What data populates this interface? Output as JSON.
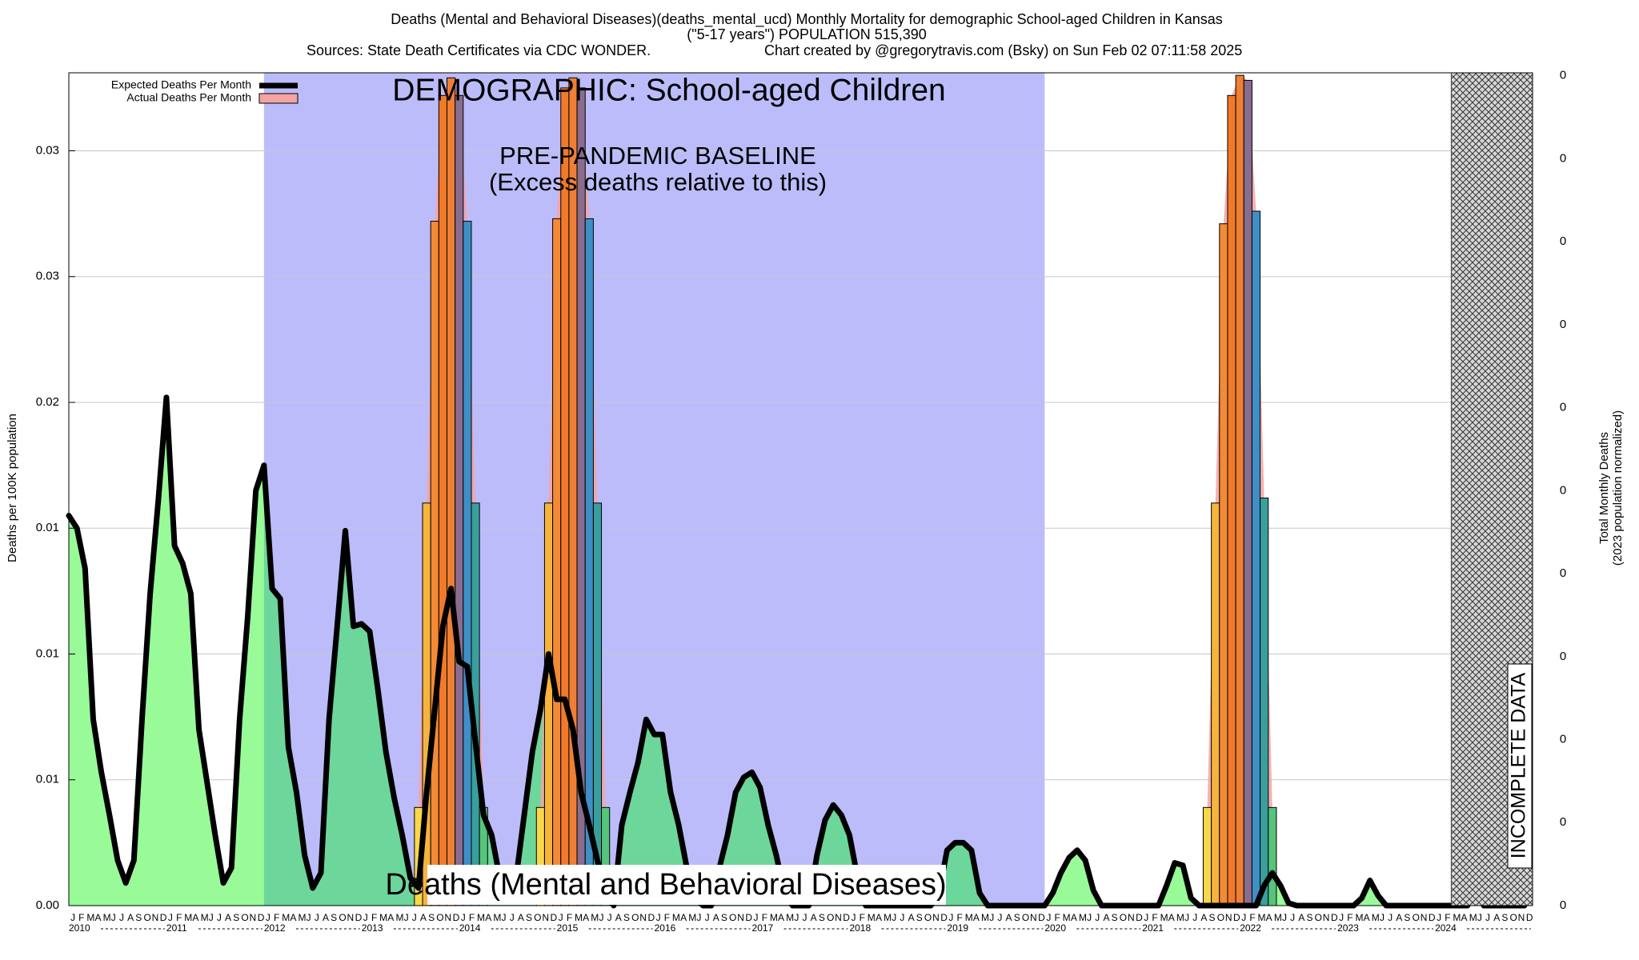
{
  "chart_data": {
    "type": "area-line",
    "title": "Deaths (Mental and Behavioral Diseases)(deaths_mental_ucd) Monthly Mortality for demographic School-aged Children in Kansas",
    "subtitle": "(\"5-17 years\") POPULATION 515,390",
    "source": "Sources: State Death Certificates via CDC WONDER.",
    "credit": "Chart created by @gregorytravis.com (Bsky) on Sun Feb 02 07:11:58 2025",
    "ylabel": "Deaths per 100K population",
    "y2label": [
      "Total Monthly Deaths",
      "(2023 population normalized)"
    ],
    "annotations": {
      "demographic": "DEMOGRAPHIC: School-aged Children",
      "baseline": "PRE-PANDEMIC BASELINE",
      "baseline_note": "(Excess deaths relative to this)",
      "cause": "Deaths (Mental and Behavioral Diseases)",
      "incomplete": "INCOMPLETE DATA"
    },
    "categories": [
      "J",
      "F",
      "M",
      "A",
      "M",
      "J",
      "J",
      "A",
      "S",
      "O",
      "N",
      "D",
      "J",
      "F",
      "M",
      "A",
      "M",
      "J",
      "J",
      "A",
      "S",
      "O",
      "N",
      "D",
      "J",
      "F",
      "M",
      "A",
      "M",
      "J",
      "J",
      "A",
      "S",
      "O",
      "N",
      "D",
      "J",
      "F",
      "M",
      "A",
      "M",
      "J",
      "J",
      "A",
      "S",
      "O",
      "N",
      "D",
      "J",
      "F",
      "M",
      "A",
      "M",
      "J",
      "J",
      "A",
      "S",
      "O",
      "N",
      "D",
      "J",
      "F",
      "M",
      "A",
      "M",
      "J",
      "J",
      "A",
      "S",
      "O",
      "N",
      "D",
      "J",
      "F",
      "M",
      "A",
      "M",
      "J",
      "J",
      "A",
      "S",
      "O",
      "N",
      "D",
      "J",
      "F",
      "M",
      "A",
      "M",
      "J",
      "J",
      "A",
      "S",
      "O",
      "N",
      "D",
      "J",
      "F",
      "M",
      "A",
      "M",
      "J",
      "J",
      "A",
      "S",
      "O",
      "N",
      "D",
      "J",
      "F",
      "M",
      "A",
      "M",
      "J",
      "J",
      "A",
      "S",
      "O",
      "N",
      "D",
      "J",
      "F",
      "M",
      "A",
      "M",
      "J",
      "J",
      "A",
      "S",
      "O",
      "N",
      "D",
      "J",
      "F",
      "M",
      "A",
      "M",
      "J",
      "J",
      "A",
      "S",
      "O",
      "N",
      "D",
      "J",
      "F",
      "M",
      "A",
      "M",
      "J",
      "J",
      "A",
      "S",
      "O",
      "N",
      "D",
      "J",
      "F",
      "M",
      "A",
      "M",
      "J",
      "J",
      "A",
      "S",
      "O",
      "N",
      "D",
      "J",
      "F",
      "M",
      "A",
      "M",
      "J",
      "J",
      "A",
      "S",
      "O",
      "N",
      "D"
    ],
    "years": [
      "2010",
      "2011",
      "2012",
      "2013",
      "2014",
      "2015",
      "2016",
      "2017",
      "2018",
      "2019",
      "2020",
      "2021",
      "2022",
      "2023",
      "2024"
    ],
    "baseline_months": [
      24,
      120
    ],
    "incomplete_from": 170,
    "series": [
      {
        "name": "Expected Deaths Per Month",
        "color": "#000000",
        "fill": "#98fb98",
        "baseline_fill": "#6dd69b",
        "values": [
          0.0155,
          0.015,
          0.0134,
          0.0074,
          0.0053,
          0.0036,
          0.0018,
          0.0009,
          0.0018,
          0.0074,
          0.0124,
          0.0161,
          0.0202,
          0.0143,
          0.0136,
          0.0124,
          0.007,
          0.0049,
          0.0028,
          0.0009,
          0.0015,
          0.0074,
          0.0115,
          0.0165,
          0.0175,
          0.0126,
          0.0122,
          0.0063,
          0.0045,
          0.002,
          0.0007,
          0.0013,
          0.0074,
          0.0111,
          0.0149,
          0.0111,
          0.0112,
          0.0109,
          0.0086,
          0.0061,
          0.0043,
          0.0028,
          0.0011,
          0.0007,
          0.0045,
          0.0078,
          0.0111,
          0.0126,
          0.0097,
          0.0095,
          0.0065,
          0.0036,
          0.0028,
          0.0011,
          0.0003,
          0.0011,
          0.0036,
          0.0061,
          0.0078,
          0.01,
          0.0082,
          0.0082,
          0.007,
          0.0045,
          0.0032,
          0.0018,
          0.0005,
          0,
          0.0032,
          0.0045,
          0.0057,
          0.0074,
          0.0068,
          0.0068,
          0.0045,
          0.0032,
          0.0015,
          0.0003,
          0,
          0,
          0.0015,
          0.0028,
          0.0045,
          0.0051,
          0.0053,
          0.0047,
          0.0032,
          0.002,
          0.0005,
          0,
          0,
          0,
          0.002,
          0.0034,
          0.004,
          0.0036,
          0.0028,
          0.0011,
          0,
          0,
          0,
          0,
          0,
          0,
          0,
          0,
          0,
          0.0005,
          0.0022,
          0.0025,
          0.0025,
          0.0022,
          0.0005,
          0,
          0,
          0,
          0,
          0,
          0,
          0,
          0,
          0.0005,
          0.0013,
          0.0019,
          0.0022,
          0.0018,
          0.0006,
          0,
          0,
          0,
          0,
          0,
          0,
          0,
          0,
          0.0008,
          0.0017,
          0.0016,
          0.0003,
          0,
          0,
          0,
          0,
          0,
          0,
          0,
          0,
          0.0008,
          0.0013,
          0.0008,
          0.0001,
          0,
          0,
          0,
          0,
          0,
          0,
          0,
          0,
          0.0003,
          0.001,
          0.0004,
          0,
          0,
          0,
          0,
          0,
          0,
          0,
          0,
          0,
          0,
          0,
          0.0006,
          0,
          0,
          0,
          0,
          0,
          0
        ]
      },
      {
        "name": "Actual Deaths Per Month",
        "color": "#f4a3a3",
        "bar_colors": [
          "#f8d84a",
          "#f6b43e",
          "#f38a36",
          "#f07a2a",
          "#ee7f35",
          "#8a6d8e",
          "#3f8fc6",
          "#3a9f9c",
          "#56c47a"
        ],
        "values": [
          null,
          null,
          null,
          null,
          null,
          null,
          null,
          null,
          null,
          null,
          null,
          null,
          null,
          null,
          null,
          null,
          null,
          null,
          null,
          null,
          null,
          null,
          null,
          null,
          null,
          null,
          null,
          null,
          null,
          null,
          null,
          null,
          null,
          null,
          null,
          null,
          null,
          null,
          null,
          null,
          null,
          null,
          null,
          0.0039,
          0.016,
          0.0272,
          0.0322,
          0.0329,
          0.0322,
          0.0272,
          0.016,
          0.0039,
          null,
          null,
          null,
          null,
          null,
          null,
          0.0039,
          0.016,
          0.0273,
          0.0325,
          0.0329,
          0.0325,
          0.0273,
          0.016,
          0.0039,
          null,
          null,
          null,
          null,
          null,
          null,
          null,
          null,
          null,
          null,
          null,
          null,
          null,
          null,
          null,
          null,
          null,
          null,
          null,
          null,
          null,
          null,
          null,
          null,
          null,
          null,
          null,
          null,
          null,
          null,
          null,
          null,
          null,
          null,
          null,
          null,
          null,
          null,
          null,
          null,
          null,
          null,
          null,
          null,
          null,
          null,
          null,
          null,
          null,
          null,
          null,
          null,
          null,
          null,
          null,
          null,
          null,
          null,
          null,
          null,
          null,
          null,
          null,
          null,
          null,
          null,
          null,
          null,
          null,
          null,
          null,
          null,
          null,
          0.0039,
          0.016,
          0.0271,
          0.0322,
          0.033,
          0.0328,
          0.0276,
          0.0162,
          0.0039,
          null,
          null,
          null,
          null,
          null,
          null,
          null,
          null,
          null,
          null,
          null,
          null,
          null,
          null,
          null,
          null,
          null,
          null,
          null,
          null,
          null,
          null,
          null,
          null,
          null,
          null,
          null,
          null,
          null,
          null,
          null
        ]
      }
    ],
    "ylim": [
      0,
      0.0331
    ],
    "yticks": [
      {
        "value": 0,
        "label": "0.00"
      },
      {
        "value": 0.005,
        "label": "0.01"
      },
      {
        "value": 0.01,
        "label": "0.01"
      },
      {
        "value": 0.015,
        "label": "0.01"
      },
      {
        "value": 0.02,
        "label": "0.02"
      },
      {
        "value": 0.025,
        "label": "0.03"
      },
      {
        "value": 0.03,
        "label": "0.03"
      }
    ],
    "y2lim": [
      0,
      0.1706
    ],
    "y2ticks": [
      {
        "value": 0,
        "label": "0"
      },
      {
        "value": 0.017,
        "label": "0"
      },
      {
        "value": 0.034,
        "label": "0"
      },
      {
        "value": 0.051,
        "label": "0"
      },
      {
        "value": 0.068,
        "label": "0"
      },
      {
        "value": 0.085,
        "label": "0"
      },
      {
        "value": 0.102,
        "label": "0"
      },
      {
        "value": 0.119,
        "label": "0"
      },
      {
        "value": 0.136,
        "label": "0"
      },
      {
        "value": 0.153,
        "label": "0"
      },
      {
        "value": 0.17,
        "label": "0"
      }
    ],
    "grid": true,
    "legend": "upper left"
  }
}
